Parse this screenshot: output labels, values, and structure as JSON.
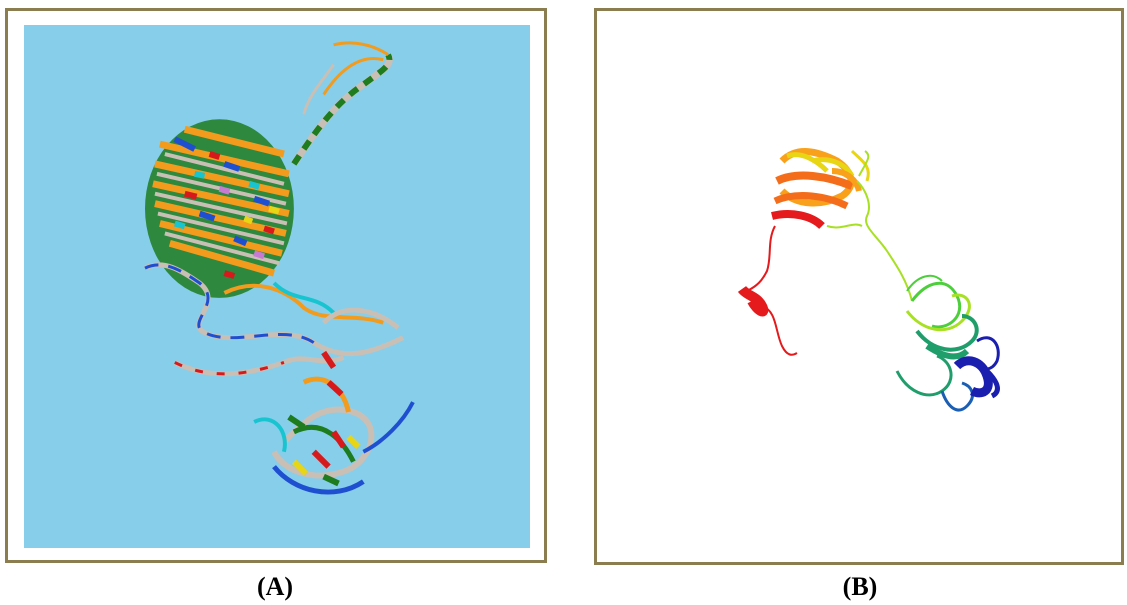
{
  "panels": [
    {
      "label": "(A)",
      "background_color": "#87ceeb",
      "frame_color": "#8b7d4f",
      "content": "protein-structure-multicolor-ribbon"
    },
    {
      "label": "(B)",
      "background_color": "#ffffff",
      "frame_color": "#8b7d4f",
      "content": "protein-structure-rainbow-ribbon"
    }
  ],
  "colors": {
    "helix_green": "#1e7b1e",
    "strand_orange": "#f29b1d",
    "coil_silver": "#c9bfb5",
    "accent_red": "#d7191c",
    "accent_blue": "#1f4fd1",
    "accent_cyan": "#19c4d1",
    "rainbow": [
      "#e41a1c",
      "#f46d1a",
      "#f9a11b",
      "#e8d514",
      "#a8e024",
      "#4ccf3b",
      "#1f9e6b",
      "#1a5fb4",
      "#1a1fb0"
    ]
  }
}
